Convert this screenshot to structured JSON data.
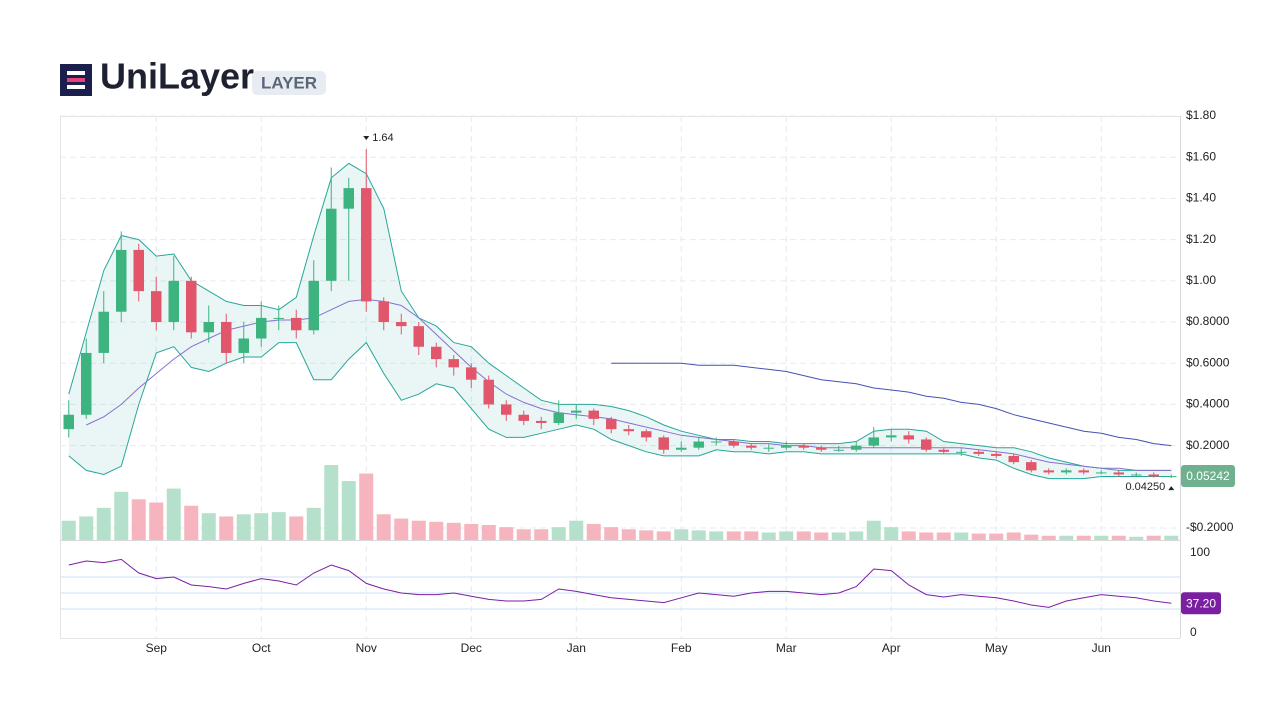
{
  "header": {
    "title": "UniLayer",
    "symbol": "LAYER"
  },
  "chart_data": {
    "type": "candlestick",
    "categories": [
      null,
      null,
      null,
      null,
      null,
      "Sep",
      null,
      null,
      null,
      null,
      null,
      "Oct",
      null,
      null,
      null,
      null,
      null,
      "Nov",
      null,
      null,
      null,
      null,
      null,
      "Dec",
      null,
      null,
      null,
      null,
      null,
      "Jan",
      null,
      null,
      null,
      null,
      null,
      "Feb",
      null,
      null,
      null,
      null,
      null,
      "Mar",
      null,
      null,
      null,
      null,
      null,
      "Apr",
      null,
      null,
      null,
      null,
      null,
      "May",
      null,
      null,
      null,
      null,
      null,
      "Jun",
      null,
      null,
      null,
      null
    ],
    "open": [
      0.28,
      0.35,
      0.65,
      0.85,
      1.15,
      0.95,
      0.8,
      1.0,
      0.75,
      0.8,
      0.65,
      0.72,
      0.82,
      0.82,
      0.76,
      1.0,
      1.35,
      1.45,
      0.9,
      0.8,
      0.78,
      0.68,
      0.62,
      0.58,
      0.52,
      0.4,
      0.35,
      0.32,
      0.31,
      0.36,
      0.37,
      0.33,
      0.28,
      0.27,
      0.24,
      0.18,
      0.19,
      0.22,
      0.22,
      0.2,
      0.19,
      0.19,
      0.2,
      0.19,
      0.18,
      0.18,
      0.2,
      0.24,
      0.25,
      0.23,
      0.18,
      0.17,
      0.17,
      0.16,
      0.15,
      0.12,
      0.08,
      0.07,
      0.08,
      0.07,
      0.07,
      0.06,
      0.06,
      0.05
    ],
    "high": [
      0.42,
      0.72,
      0.95,
      1.24,
      1.18,
      1.02,
      1.12,
      1.02,
      0.88,
      0.84,
      0.8,
      0.9,
      0.88,
      0.86,
      1.1,
      1.55,
      1.5,
      1.64,
      0.92,
      0.84,
      0.8,
      0.7,
      0.64,
      0.6,
      0.54,
      0.42,
      0.37,
      0.34,
      0.42,
      0.4,
      0.38,
      0.34,
      0.3,
      0.28,
      0.25,
      0.22,
      0.24,
      0.24,
      0.23,
      0.21,
      0.21,
      0.22,
      0.21,
      0.2,
      0.2,
      0.22,
      0.29,
      0.28,
      0.27,
      0.24,
      0.19,
      0.19,
      0.18,
      0.17,
      0.16,
      0.13,
      0.09,
      0.09,
      0.09,
      0.08,
      0.08,
      0.07,
      0.07,
      0.06
    ],
    "low": [
      0.24,
      0.33,
      0.6,
      0.8,
      0.9,
      0.76,
      0.76,
      0.72,
      0.7,
      0.6,
      0.6,
      0.68,
      0.76,
      0.72,
      0.74,
      0.95,
      1.0,
      0.85,
      0.76,
      0.74,
      0.64,
      0.58,
      0.54,
      0.48,
      0.38,
      0.32,
      0.3,
      0.28,
      0.3,
      0.33,
      0.3,
      0.26,
      0.25,
      0.22,
      0.16,
      0.17,
      0.18,
      0.2,
      0.19,
      0.18,
      0.17,
      0.18,
      0.18,
      0.17,
      0.17,
      0.17,
      0.19,
      0.22,
      0.21,
      0.17,
      0.16,
      0.15,
      0.15,
      0.14,
      0.11,
      0.07,
      0.06,
      0.06,
      0.06,
      0.06,
      0.05,
      0.05,
      0.045,
      0.0425
    ],
    "close": [
      0.35,
      0.65,
      0.85,
      1.15,
      0.95,
      0.8,
      1.0,
      0.75,
      0.8,
      0.65,
      0.72,
      0.82,
      0.82,
      0.76,
      1.0,
      1.35,
      1.45,
      0.9,
      0.8,
      0.78,
      0.68,
      0.62,
      0.58,
      0.52,
      0.4,
      0.35,
      0.32,
      0.31,
      0.36,
      0.37,
      0.33,
      0.28,
      0.27,
      0.24,
      0.18,
      0.19,
      0.22,
      0.22,
      0.2,
      0.19,
      0.19,
      0.2,
      0.19,
      0.18,
      0.18,
      0.2,
      0.24,
      0.25,
      0.23,
      0.18,
      0.17,
      0.17,
      0.16,
      0.15,
      0.12,
      0.08,
      0.07,
      0.08,
      0.07,
      0.07,
      0.06,
      0.06,
      0.05,
      0.05242
    ],
    "up_color": "#3db380",
    "down_color": "#e2566c",
    "volume": {
      "values": [
        18,
        22,
        30,
        45,
        38,
        35,
        48,
        32,
        25,
        22,
        24,
        25,
        26,
        22,
        30,
        70,
        55,
        62,
        24,
        20,
        18,
        17,
        16,
        15,
        14,
        12,
        10,
        10,
        12,
        18,
        15,
        12,
        10,
        9,
        8,
        10,
        9,
        8,
        8,
        8,
        7,
        8,
        8,
        7,
        7,
        8,
        18,
        12,
        8,
        7,
        7,
        7,
        6,
        6,
        7,
        5,
        4,
        4,
        4,
        4,
        4,
        3,
        4,
        4
      ],
      "up_color": "#b5e0cb",
      "down_color": "#f5b4be"
    },
    "bands": {
      "upper": [
        0.45,
        0.75,
        1.05,
        1.22,
        1.2,
        1.12,
        1.13,
        1.0,
        0.95,
        0.9,
        0.88,
        0.88,
        0.86,
        0.92,
        1.22,
        1.5,
        1.57,
        1.52,
        1.35,
        0.95,
        0.82,
        0.78,
        0.7,
        0.68,
        0.6,
        0.54,
        0.48,
        0.42,
        0.4,
        0.4,
        0.4,
        0.39,
        0.37,
        0.34,
        0.3,
        0.27,
        0.25,
        0.23,
        0.23,
        0.22,
        0.22,
        0.21,
        0.21,
        0.21,
        0.21,
        0.22,
        0.27,
        0.28,
        0.28,
        0.27,
        0.22,
        0.21,
        0.2,
        0.19,
        0.19,
        0.17,
        0.14,
        0.12,
        0.1,
        0.09,
        0.08,
        0.08,
        0.08,
        0.08
      ],
      "lower": [
        0.15,
        0.08,
        0.06,
        0.1,
        0.4,
        0.65,
        0.68,
        0.58,
        0.56,
        0.6,
        0.63,
        0.63,
        0.7,
        0.7,
        0.52,
        0.52,
        0.62,
        0.7,
        0.55,
        0.42,
        0.45,
        0.5,
        0.48,
        0.38,
        0.28,
        0.24,
        0.24,
        0.26,
        0.28,
        0.3,
        0.28,
        0.23,
        0.2,
        0.17,
        0.15,
        0.15,
        0.15,
        0.18,
        0.17,
        0.17,
        0.16,
        0.17,
        0.17,
        0.16,
        0.16,
        0.16,
        0.16,
        0.16,
        0.16,
        0.16,
        0.16,
        0.16,
        0.14,
        0.13,
        0.09,
        0.06,
        0.04,
        0.04,
        0.04,
        0.05,
        0.05,
        0.05,
        0.05,
        0.05
      ],
      "color": "#26a69a"
    },
    "ma_short": {
      "values": [
        null,
        0.3,
        0.34,
        0.4,
        0.48,
        0.55,
        0.62,
        0.68,
        0.72,
        0.76,
        0.78,
        0.8,
        0.81,
        0.81,
        0.82,
        0.86,
        0.9,
        0.91,
        0.9,
        0.88,
        0.82,
        0.74,
        0.66,
        0.58,
        0.51,
        0.45,
        0.41,
        0.38,
        0.36,
        0.35,
        0.34,
        0.33,
        0.31,
        0.29,
        0.27,
        0.25,
        0.24,
        0.23,
        0.22,
        0.21,
        0.21,
        0.2,
        0.2,
        0.19,
        0.19,
        0.19,
        0.19,
        0.19,
        0.19,
        0.19,
        0.19,
        0.19,
        0.18,
        0.17,
        0.16,
        0.14,
        0.12,
        0.11,
        0.1,
        0.09,
        0.09,
        0.08,
        0.08,
        0.08
      ],
      "color": "#8a6fd0"
    },
    "ma_long": {
      "values": [
        null,
        null,
        null,
        null,
        null,
        null,
        null,
        null,
        null,
        null,
        null,
        null,
        null,
        null,
        null,
        null,
        null,
        null,
        null,
        null,
        null,
        null,
        null,
        null,
        null,
        null,
        null,
        null,
        null,
        null,
        null,
        0.6,
        0.6,
        0.6,
        0.6,
        0.6,
        0.59,
        0.59,
        0.59,
        0.58,
        0.57,
        0.56,
        0.54,
        0.52,
        0.51,
        0.5,
        0.48,
        0.47,
        0.46,
        0.44,
        0.43,
        0.41,
        0.4,
        0.38,
        0.35,
        0.33,
        0.31,
        0.29,
        0.27,
        0.26,
        0.24,
        0.23,
        0.21,
        0.2
      ],
      "color": "#4353b3"
    },
    "ylim": [
      -0.258,
      1.8
    ],
    "yticks": [
      {
        "value": 1.8,
        "label": "$1.80"
      },
      {
        "value": 1.6,
        "label": "$1.60"
      },
      {
        "value": 1.4,
        "label": "$1.40"
      },
      {
        "value": 1.2,
        "label": "$1.20"
      },
      {
        "value": 1.0,
        "label": "$1.00"
      },
      {
        "value": 0.8,
        "label": "$0.8000"
      },
      {
        "value": 0.6,
        "label": "$0.6000"
      },
      {
        "value": 0.4,
        "label": "$0.4000"
      },
      {
        "value": 0.2,
        "label": "$0.2000"
      },
      {
        "value": -0.2,
        "label": "-$0.2000"
      }
    ],
    "grid": true,
    "last_color": "#6fb08e",
    "low_label": {
      "value": 0.0425,
      "label": "0.04250"
    },
    "rsi": {
      "values": [
        85,
        90,
        88,
        92,
        75,
        68,
        70,
        60,
        58,
        55,
        62,
        68,
        65,
        60,
        75,
        85,
        78,
        62,
        55,
        50,
        48,
        48,
        50,
        46,
        42,
        40,
        40,
        42,
        55,
        52,
        48,
        44,
        42,
        40,
        38,
        44,
        50,
        48,
        46,
        50,
        52,
        52,
        50,
        48,
        50,
        58,
        80,
        78,
        60,
        48,
        45,
        48,
        46,
        44,
        40,
        35,
        32,
        40,
        44,
        48,
        46,
        44,
        40,
        37.2
      ],
      "color": "#7b1fa2",
      "ylim": [
        -6.25,
        116.25
      ],
      "yticks": [
        0,
        100
      ],
      "bands": [
        30,
        50,
        70
      ],
      "last_label": {
        "value": 37.2,
        "label": "37.20"
      }
    }
  }
}
